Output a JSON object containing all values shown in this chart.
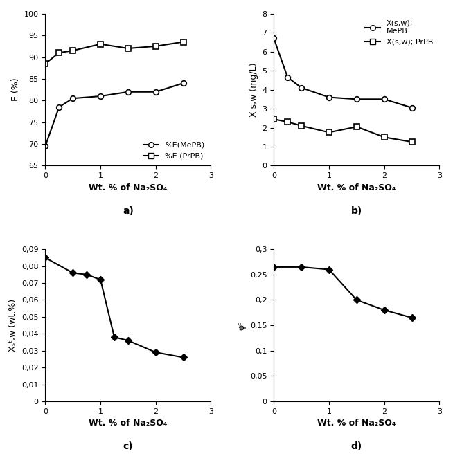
{
  "subplot_a": {
    "MePB_x": [
      0,
      0.25,
      0.5,
      1.0,
      1.5,
      2.0,
      2.5
    ],
    "MePB_y": [
      69.5,
      78.5,
      80.5,
      81.0,
      82.0,
      82.0,
      84.0
    ],
    "PrPB_x": [
      0,
      0.25,
      0.5,
      1.0,
      1.5,
      2.0,
      2.5
    ],
    "PrPB_y": [
      88.5,
      91.0,
      91.5,
      93.0,
      92.0,
      92.5,
      93.5
    ],
    "ylabel": "E (%)",
    "xlabel": "Wt. % of Na₂SO₄",
    "ylim": [
      65,
      100
    ],
    "yticks": [
      65,
      70,
      75,
      80,
      85,
      90,
      95,
      100
    ],
    "xlim": [
      0,
      3
    ],
    "xticks": [
      0,
      1,
      2,
      3
    ],
    "label": "a)",
    "legend_MePB": "%E(MePB)",
    "legend_PrPB": "%E (PrPB)"
  },
  "subplot_b": {
    "MePB_x": [
      0,
      0.25,
      0.5,
      1.0,
      1.5,
      2.0,
      2.5
    ],
    "MePB_y": [
      6.7,
      4.65,
      4.1,
      3.6,
      3.5,
      3.5,
      3.05
    ],
    "PrPB_x": [
      0,
      0.25,
      0.5,
      1.0,
      1.5,
      2.0,
      2.5
    ],
    "PrPB_y": [
      2.45,
      2.3,
      2.1,
      1.75,
      2.05,
      1.5,
      1.25
    ],
    "ylabel": "X s,w (mg/L)",
    "xlabel": "Wt. % of Na₂SO₄",
    "ylim": [
      0,
      8
    ],
    "yticks": [
      0,
      1,
      2,
      3,
      4,
      5,
      6,
      7,
      8
    ],
    "xlim": [
      0,
      3
    ],
    "xticks": [
      0,
      1,
      2,
      3
    ],
    "label": "b)",
    "legend_MePB": "X(s,w);\nMePB",
    "legend_PrPB": "X(s,w); PrPB"
  },
  "subplot_c": {
    "x": [
      0,
      0.5,
      0.75,
      1.0,
      1.25,
      1.5,
      2.0,
      2.5
    ],
    "y": [
      0.085,
      0.076,
      0.075,
      0.072,
      0.038,
      0.036,
      0.029,
      0.026
    ],
    "ylabel": "Xₛᵗ,w (wt.%)",
    "xlabel": "Wt. % of Na₂SO₄",
    "ylim": [
      0,
      0.09
    ],
    "yticks": [
      0,
      0.01,
      0.02,
      0.03,
      0.04,
      0.05,
      0.06,
      0.07,
      0.08,
      0.09
    ],
    "xlim": [
      0,
      3
    ],
    "xticks": [
      0,
      1,
      2,
      3
    ],
    "label": "c)"
  },
  "subplot_d": {
    "x": [
      0,
      0.5,
      1.0,
      1.5,
      2.0,
      2.5
    ],
    "y": [
      0.265,
      0.265,
      0.26,
      0.2,
      0.18,
      0.165
    ],
    "ylabel": "φᶜ",
    "xlabel": "Wt. % of Na₂SO₄",
    "ylim": [
      0,
      0.3
    ],
    "yticks": [
      0,
      0.05,
      0.1,
      0.15,
      0.2,
      0.25,
      0.3
    ],
    "xlim": [
      0,
      3
    ],
    "xticks": [
      0,
      1,
      2,
      3
    ],
    "label": "d)"
  }
}
